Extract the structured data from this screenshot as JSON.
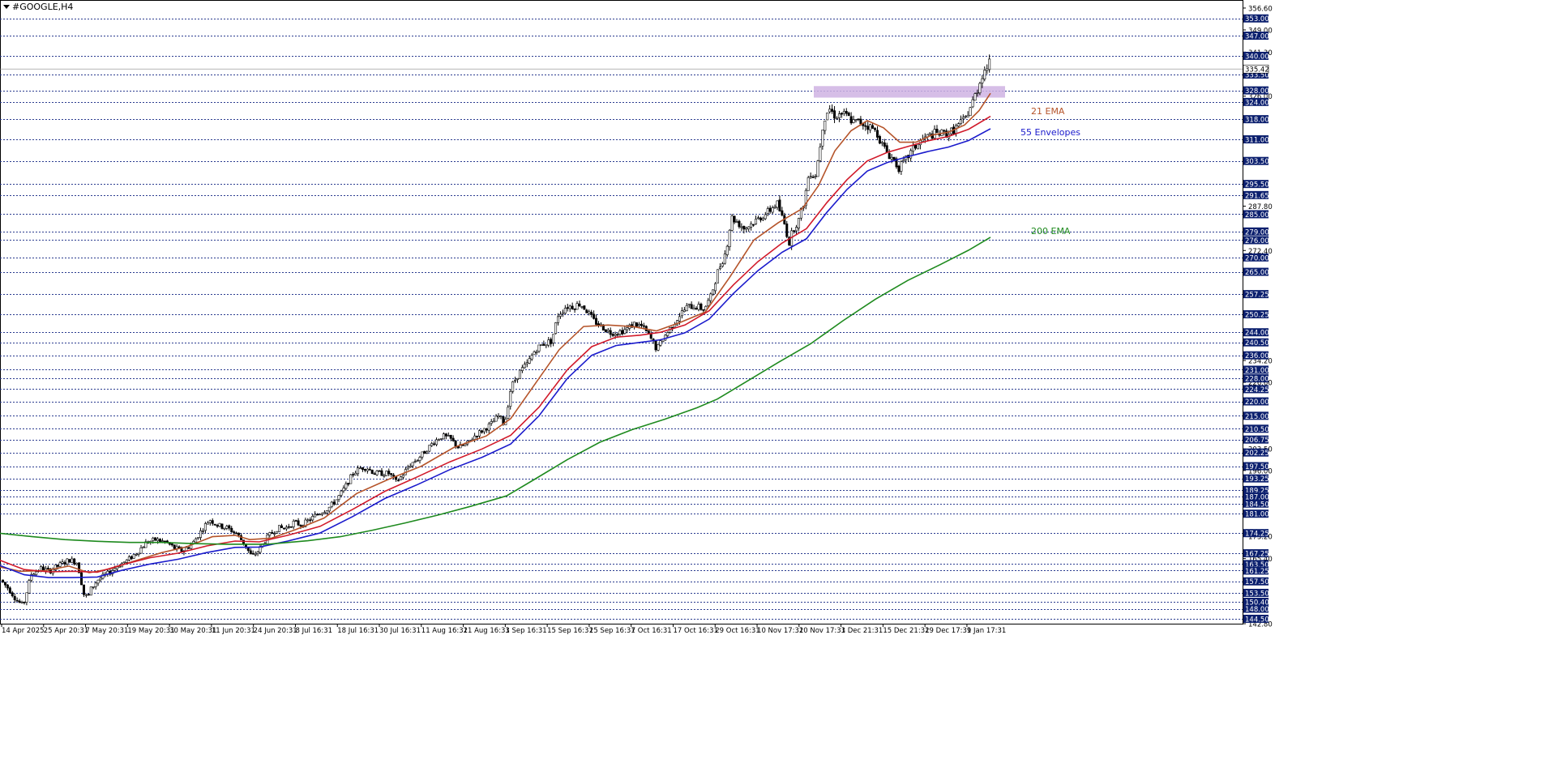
{
  "window": {
    "title": "#GOOGLE,H4"
  },
  "annotations": [
    {
      "text": "21 EMA",
      "color": "#b5542a",
      "price": 320.6,
      "xi": 1208
    },
    {
      "text": "55 Envelopes",
      "color": "#1a1acc",
      "price": 313.4,
      "xi": 1195
    },
    {
      "text": "200 EMA",
      "color": "#1e8a1e",
      "price": 279.0,
      "xi": 1208
    }
  ],
  "chart_data": {
    "type": "candlestick",
    "symbol": "#GOOGLE",
    "timeframe": "H4",
    "ylim": [
      142.8,
      356.6
    ],
    "resistance_zone": [
      325.5,
      329.5
    ],
    "price_levels": [
      353.0,
      347.0,
      340.0,
      333.5,
      328.0,
      324.0,
      318.0,
      311.0,
      303.5,
      295.5,
      291.65,
      285.0,
      279.0,
      276.0,
      270.0,
      265.0,
      257.25,
      250.25,
      244.0,
      240.5,
      236.0,
      231.0,
      228.0,
      224.25,
      220.0,
      215.0,
      210.5,
      206.75,
      202.25,
      197.5,
      193.25,
      189.25,
      187.0,
      184.5,
      181.0,
      174.25,
      167.25,
      163.5,
      161.25,
      157.5,
      153.5,
      150.4,
      148.0,
      144.5
    ],
    "price_labels": [
      "353.00",
      "347.00",
      "340.00",
      "333.50",
      "328.00",
      "324.00",
      "318.00",
      "311.00",
      "303.50",
      "295.50",
      "291.65",
      "285.00",
      "279.00",
      "276.00",
      "270.00",
      "265.00",
      "257.25",
      "250.25",
      "244.00",
      "240.50",
      "236.00",
      "231.00",
      "228.00",
      "224.25",
      "220.00",
      "215.00",
      "210.50",
      "206.75",
      "202.25",
      "197.50",
      "193.25",
      "189.25",
      "187.00",
      "184.50",
      "181.00",
      "174.25",
      "167.25",
      "163.50",
      "161.25",
      "157.50",
      "153.50",
      "150.40",
      "148.00",
      "144.50"
    ],
    "axis_ticks": [
      "356.60",
      "349.00",
      "341.30",
      "326.00",
      "287.80",
      "272.40",
      "234.20",
      "226.60",
      "203.50",
      "196.00",
      "173.20",
      "165.40",
      "142.80"
    ],
    "current_price": {
      "value": 335.42,
      "label": "335.42"
    },
    "time_labels": [
      "14 Apr 2025",
      "25 Apr 20:31",
      "7 May 20:31",
      "19 May 20:31",
      "30 May 20:31",
      "11 Jun 20:31",
      "24 Jun 20:31",
      "8 Jul 16:31",
      "18 Jul 16:31",
      "30 Jul 16:31",
      "11 Aug 16:31",
      "21 Aug 16:31",
      "3 Sep 16:31",
      "15 Sep 16:31",
      "25 Sep 16:31",
      "7 Oct 16:31",
      "17 Oct 16:31",
      "29 Oct 16:31",
      "10 Nov 17:31",
      "20 Nov 17:31",
      "3 Dec 21:31",
      "15 Dec 21:31",
      "29 Dec 17:31",
      "9 Jan 17:31"
    ],
    "price_path": [
      [
        0,
        158
      ],
      [
        10,
        155
      ],
      [
        20,
        151
      ],
      [
        28,
        149
      ],
      [
        38,
        160
      ],
      [
        50,
        162
      ],
      [
        60,
        161
      ],
      [
        72,
        163
      ],
      [
        85,
        165
      ],
      [
        95,
        164
      ],
      [
        103,
        153
      ],
      [
        108,
        152
      ],
      [
        112,
        155
      ],
      [
        120,
        158
      ],
      [
        132,
        160
      ],
      [
        145,
        163
      ],
      [
        158,
        165
      ],
      [
        170,
        168
      ],
      [
        180,
        171
      ],
      [
        192,
        172
      ],
      [
        205,
        171
      ],
      [
        215,
        169
      ],
      [
        225,
        168
      ],
      [
        238,
        171
      ],
      [
        250,
        176
      ],
      [
        258,
        179
      ],
      [
        268,
        177
      ],
      [
        280,
        176
      ],
      [
        292,
        174
      ],
      [
        302,
        170
      ],
      [
        310,
        166
      ],
      [
        318,
        168
      ],
      [
        330,
        173
      ],
      [
        342,
        176
      ],
      [
        352,
        176
      ],
      [
        362,
        178
      ],
      [
        372,
        177
      ],
      [
        382,
        179
      ],
      [
        392,
        181
      ],
      [
        405,
        183
      ],
      [
        415,
        186
      ],
      [
        425,
        190
      ],
      [
        435,
        195
      ],
      [
        445,
        197
      ],
      [
        452,
        197
      ],
      [
        462,
        195
      ],
      [
        470,
        195
      ],
      [
        480,
        195
      ],
      [
        488,
        192
      ],
      [
        495,
        194
      ],
      [
        505,
        198
      ],
      [
        515,
        200
      ],
      [
        525,
        203
      ],
      [
        535,
        206
      ],
      [
        545,
        208
      ],
      [
        555,
        207
      ],
      [
        565,
        204
      ],
      [
        575,
        205
      ],
      [
        585,
        208
      ],
      [
        595,
        210
      ],
      [
        605,
        212
      ],
      [
        615,
        215
      ],
      [
        622,
        212
      ],
      [
        630,
        225
      ],
      [
        640,
        230
      ],
      [
        650,
        233
      ],
      [
        660,
        238
      ],
      [
        670,
        240
      ],
      [
        680,
        241
      ],
      [
        688,
        250
      ],
      [
        698,
        253
      ],
      [
        708,
        253
      ],
      [
        715,
        254
      ],
      [
        722,
        252
      ],
      [
        732,
        248
      ],
      [
        742,
        246
      ],
      [
        752,
        244
      ],
      [
        762,
        244
      ],
      [
        772,
        245
      ],
      [
        782,
        247
      ],
      [
        792,
        246
      ],
      [
        802,
        242
      ],
      [
        810,
        238
      ],
      [
        818,
        242
      ],
      [
        828,
        246
      ],
      [
        838,
        250
      ],
      [
        848,
        253
      ],
      [
        858,
        253
      ],
      [
        868,
        252
      ],
      [
        876,
        256
      ],
      [
        885,
        265
      ],
      [
        895,
        272
      ],
      [
        902,
        284
      ],
      [
        910,
        282
      ],
      [
        918,
        280
      ],
      [
        928,
        282
      ],
      [
        938,
        284
      ],
      [
        948,
        286
      ],
      [
        958,
        289
      ],
      [
        968,
        281
      ],
      [
        973,
        275
      ],
      [
        978,
        280
      ],
      [
        985,
        283
      ],
      [
        992,
        290
      ],
      [
        998,
        300
      ],
      [
        1005,
        298
      ],
      [
        1010,
        306
      ],
      [
        1015,
        317
      ],
      [
        1022,
        322
      ],
      [
        1030,
        319
      ],
      [
        1038,
        320
      ],
      [
        1045,
        319
      ],
      [
        1052,
        317
      ],
      [
        1060,
        317
      ],
      [
        1068,
        316
      ],
      [
        1075,
        315
      ],
      [
        1082,
        313
      ],
      [
        1088,
        309
      ],
      [
        1095,
        306
      ],
      [
        1102,
        304
      ],
      [
        1108,
        301
      ],
      [
        1115,
        303
      ],
      [
        1122,
        306
      ],
      [
        1130,
        309
      ],
      [
        1138,
        311
      ],
      [
        1145,
        312
      ],
      [
        1152,
        313
      ],
      [
        1160,
        313
      ],
      [
        1168,
        313
      ],
      [
        1175,
        314
      ],
      [
        1182,
        316
      ],
      [
        1190,
        318
      ],
      [
        1198,
        323
      ],
      [
        1205,
        328
      ],
      [
        1212,
        334
      ],
      [
        1219,
        337
      ],
      [
        1222,
        338
      ]
    ],
    "series": [
      {
        "name": "21 EMA",
        "color": "#b5542a",
        "points": [
          [
            0,
            162.5
          ],
          [
            25,
            161
          ],
          [
            55,
            161.2
          ],
          [
            85,
            162.8
          ],
          [
            110,
            160.5
          ],
          [
            135,
            161.8
          ],
          [
            165,
            164.5
          ],
          [
            200,
            167.5
          ],
          [
            230,
            169.5
          ],
          [
            262,
            173
          ],
          [
            290,
            173.5
          ],
          [
            308,
            172
          ],
          [
            335,
            172.5
          ],
          [
            365,
            175.5
          ],
          [
            400,
            179.5
          ],
          [
            440,
            188
          ],
          [
            480,
            193
          ],
          [
            520,
            197.5
          ],
          [
            560,
            204
          ],
          [
            600,
            208
          ],
          [
            630,
            214
          ],
          [
            660,
            226
          ],
          [
            690,
            238
          ],
          [
            720,
            246
          ],
          [
            750,
            246.5
          ],
          [
            780,
            246
          ],
          [
            810,
            244.5
          ],
          [
            840,
            247.5
          ],
          [
            870,
            251
          ],
          [
            900,
            263
          ],
          [
            930,
            276
          ],
          [
            960,
            282
          ],
          [
            990,
            287
          ],
          [
            1010,
            295
          ],
          [
            1030,
            307
          ],
          [
            1050,
            314
          ],
          [
            1070,
            317.5
          ],
          [
            1090,
            315
          ],
          [
            1110,
            310
          ],
          [
            1130,
            310
          ],
          [
            1150,
            312.5
          ],
          [
            1170,
            313.5
          ],
          [
            1190,
            316
          ],
          [
            1208,
            321
          ],
          [
            1222,
            327
          ]
        ]
      },
      {
        "name": "55 Envelopes (upper)",
        "color": "#d11a2a",
        "points": [
          [
            0,
            164.8
          ],
          [
            30,
            161.6
          ],
          [
            60,
            160.8
          ],
          [
            90,
            161
          ],
          [
            120,
            160.7
          ],
          [
            150,
            163.2
          ],
          [
            185,
            165.7
          ],
          [
            220,
            167.3
          ],
          [
            255,
            169.8
          ],
          [
            290,
            171.5
          ],
          [
            320,
            171.2
          ],
          [
            355,
            173.5
          ],
          [
            395,
            176.6
          ],
          [
            435,
            182.5
          ],
          [
            475,
            188.8
          ],
          [
            515,
            193.8
          ],
          [
            555,
            199
          ],
          [
            595,
            203.5
          ],
          [
            630,
            208.2
          ],
          [
            665,
            218
          ],
          [
            700,
            231
          ],
          [
            730,
            239
          ],
          [
            760,
            242.3
          ],
          [
            790,
            243
          ],
          [
            815,
            244
          ],
          [
            845,
            246.5
          ],
          [
            875,
            251.5
          ],
          [
            905,
            260.5
          ],
          [
            935,
            268.5
          ],
          [
            965,
            275
          ],
          [
            995,
            280
          ],
          [
            1020,
            289
          ],
          [
            1045,
            297
          ],
          [
            1070,
            303.5
          ],
          [
            1095,
            306.5
          ],
          [
            1120,
            308.5
          ],
          [
            1145,
            310.5
          ],
          [
            1170,
            312
          ],
          [
            1195,
            314.5
          ],
          [
            1222,
            319
          ]
        ]
      },
      {
        "name": "55 Envelopes (lower)",
        "color": "#1a1acc",
        "points": [
          [
            0,
            163
          ],
          [
            30,
            159.8
          ],
          [
            60,
            158.8
          ],
          [
            90,
            158.8
          ],
          [
            120,
            159
          ],
          [
            150,
            161.3
          ],
          [
            185,
            163.5
          ],
          [
            220,
            165.2
          ],
          [
            255,
            167.5
          ],
          [
            290,
            169.3
          ],
          [
            320,
            169.4
          ],
          [
            355,
            171.5
          ],
          [
            395,
            174.3
          ],
          [
            435,
            180
          ],
          [
            475,
            186.3
          ],
          [
            515,
            191.1
          ],
          [
            555,
            196.3
          ],
          [
            595,
            200.6
          ],
          [
            630,
            205.2
          ],
          [
            665,
            215
          ],
          [
            700,
            228
          ],
          [
            730,
            236
          ],
          [
            760,
            239.4
          ],
          [
            790,
            240.5
          ],
          [
            815,
            241.4
          ],
          [
            845,
            243.8
          ],
          [
            875,
            248.6
          ],
          [
            905,
            257.5
          ],
          [
            935,
            265.4
          ],
          [
            965,
            271.8
          ],
          [
            995,
            276.5
          ],
          [
            1020,
            285.6
          ],
          [
            1045,
            293.6
          ],
          [
            1070,
            300
          ],
          [
            1095,
            303
          ],
          [
            1120,
            305
          ],
          [
            1145,
            306.8
          ],
          [
            1170,
            308.3
          ],
          [
            1195,
            310.6
          ],
          [
            1222,
            314.7
          ]
        ]
      },
      {
        "name": "200 EMA",
        "color": "#1e8a1e",
        "points": [
          [
            0,
            174.2
          ],
          [
            40,
            173
          ],
          [
            80,
            172
          ],
          [
            120,
            171.4
          ],
          [
            160,
            171
          ],
          [
            200,
            171
          ],
          [
            240,
            170.6
          ],
          [
            280,
            170.4
          ],
          [
            330,
            170.4
          ],
          [
            380,
            171.6
          ],
          [
            420,
            173
          ],
          [
            460,
            175.3
          ],
          [
            500,
            177.8
          ],
          [
            540,
            180.5
          ],
          [
            580,
            183.5
          ],
          [
            625,
            187.2
          ],
          [
            660,
            193
          ],
          [
            700,
            199.8
          ],
          [
            740,
            205.8
          ],
          [
            780,
            210.2
          ],
          [
            820,
            213.8
          ],
          [
            860,
            217.8
          ],
          [
            885,
            220.8
          ],
          [
            920,
            226.7
          ],
          [
            960,
            233.5
          ],
          [
            1000,
            240
          ],
          [
            1040,
            248
          ],
          [
            1080,
            255.5
          ],
          [
            1120,
            262
          ],
          [
            1160,
            267.5
          ],
          [
            1195,
            272.5
          ],
          [
            1222,
            277
          ]
        ]
      }
    ]
  }
}
